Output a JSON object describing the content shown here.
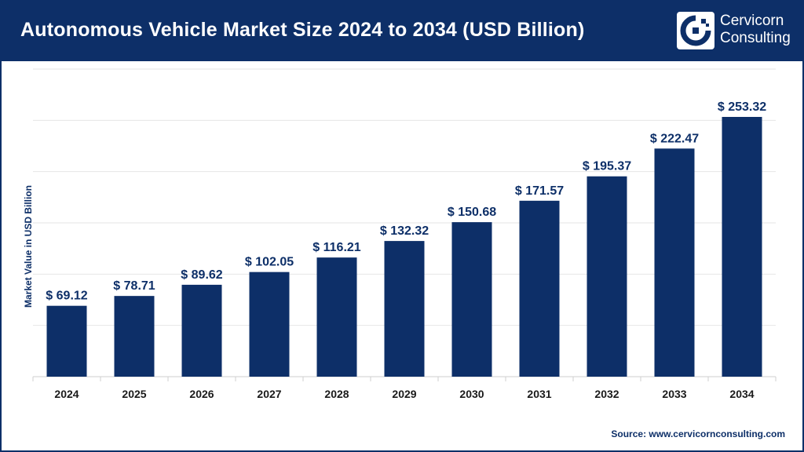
{
  "header": {
    "title": "Autonomous Vehicle Market Size 2024 to 2034 (USD Billion)",
    "logo": {
      "line1": "Cervicorn",
      "line2": "Consulting",
      "icon": "cervicorn-logo-icon"
    }
  },
  "colors": {
    "brand": "#0d2f68",
    "bar": "#0d2f68",
    "grid": "#e6e6e6",
    "axis": "#cfcfcf"
  },
  "source": "Source: www.cervicornconsulting.com",
  "chart_data": {
    "type": "bar",
    "title": "Autonomous Vehicle Market Size 2024 to 2034 (USD Billion)",
    "xlabel": "",
    "ylabel": "Market Value in USD Billion",
    "categories": [
      "2024",
      "2025",
      "2026",
      "2027",
      "2028",
      "2029",
      "2030",
      "2031",
      "2032",
      "2033",
      "2034"
    ],
    "values": [
      69.12,
      78.71,
      89.62,
      102.05,
      116.21,
      132.32,
      150.68,
      171.57,
      195.37,
      222.47,
      253.32
    ],
    "value_labels": [
      "$ 69.12",
      "$ 78.71",
      "$ 89.62",
      "$ 102.05",
      "$ 116.21",
      "$ 132.32",
      "$ 150.68",
      "$ 171.57",
      "$ 195.37",
      "$ 222.47",
      "$ 253.32"
    ],
    "ylim": [
      0,
      300
    ],
    "grid": true,
    "legend": "none"
  }
}
